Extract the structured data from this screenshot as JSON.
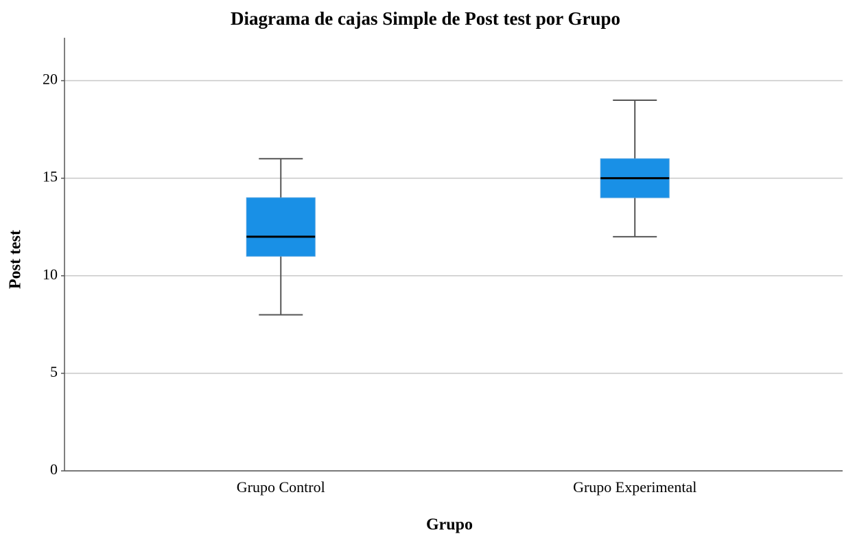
{
  "chart_data": {
    "type": "box",
    "title": "Diagrama de cajas Simple de Post test por Grupo",
    "x_label": "Grupo",
    "y_label": "Post test",
    "categories": [
      "Grupo Control",
      "Grupo Experimental"
    ],
    "min": [
      8,
      12
    ],
    "q1": [
      11,
      14
    ],
    "median": [
      12,
      15
    ],
    "q3": [
      14,
      16
    ],
    "max": [
      16,
      19
    ],
    "color": "#1990e6",
    "ylim": [
      0,
      22.2
    ],
    "yticks": [
      0,
      5,
      10,
      15,
      20
    ],
    "grid": true
  }
}
